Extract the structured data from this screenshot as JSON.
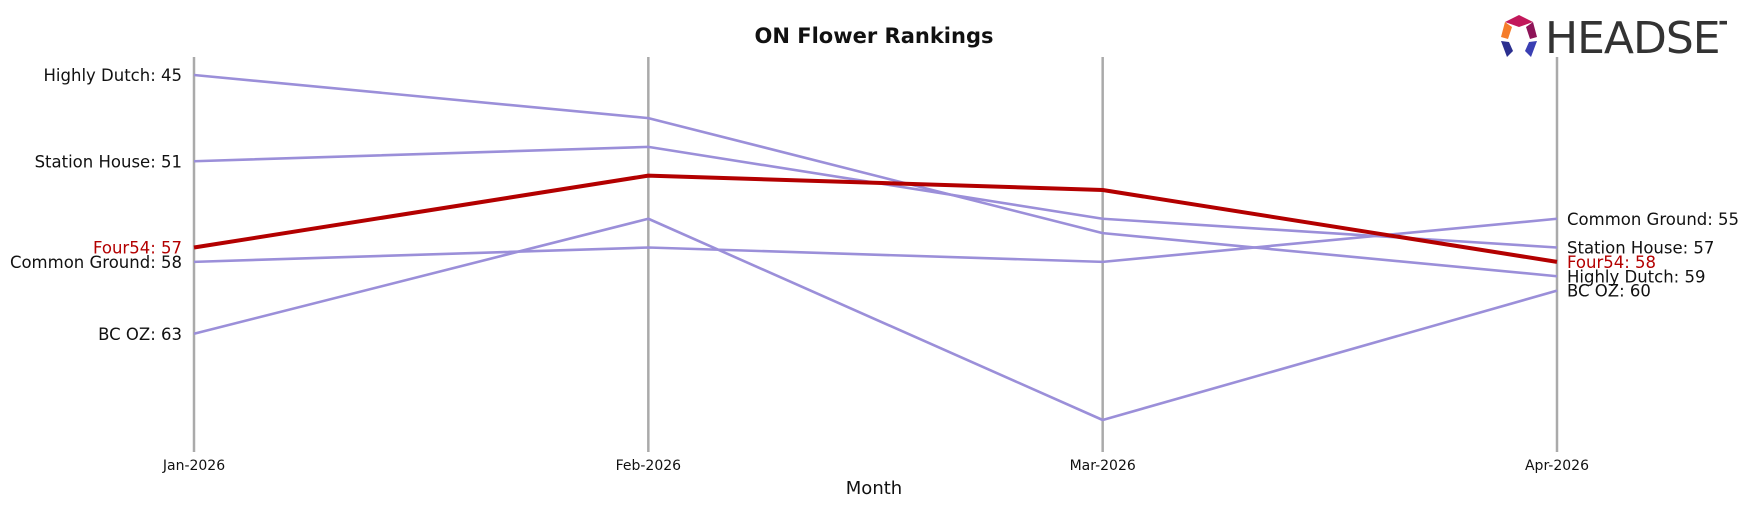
{
  "logo": {
    "text": "HEADSET"
  },
  "chart_data": {
    "type": "line",
    "title": "ON Flower Rankings",
    "xlabel": "Month",
    "ylabel": "",
    "x": [
      "Jan-2026",
      "Feb-2026",
      "Mar-2026",
      "Apr-2026"
    ],
    "y_inverted": true,
    "ylim": [
      44,
      72
    ],
    "grid": false,
    "series": [
      {
        "name": "Highly Dutch",
        "values": [
          45,
          48,
          56,
          59
        ],
        "color": "#9b8fd9",
        "highlight": false,
        "start_label": "Highly Dutch: 45",
        "end_label": "Highly Dutch: 59"
      },
      {
        "name": "Station House",
        "values": [
          51,
          50,
          55,
          57
        ],
        "color": "#9b8fd9",
        "highlight": false,
        "start_label": "Station House: 51",
        "end_label": "Station House: 57"
      },
      {
        "name": "Common Ground",
        "values": [
          58,
          57,
          58,
          55
        ],
        "color": "#9b8fd9",
        "highlight": false,
        "start_label": "Common Ground: 58",
        "end_label": "Common Ground: 55"
      },
      {
        "name": "BC OZ",
        "values": [
          63,
          55,
          69,
          60
        ],
        "color": "#9b8fd9",
        "highlight": false,
        "start_label": "BC OZ: 63",
        "end_label": "BC OZ: 60"
      },
      {
        "name": "Four54",
        "values": [
          57,
          52,
          53,
          58
        ],
        "color": "#b30000",
        "highlight": true,
        "start_label": "Four54: 57",
        "end_label": "Four54: 58"
      }
    ]
  }
}
